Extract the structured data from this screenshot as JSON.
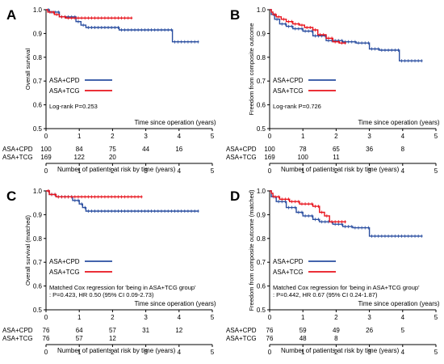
{
  "colors": {
    "cpd": "#2a4ea0",
    "tcg": "#e8121b",
    "axis": "#000000"
  },
  "chart_data": [
    {
      "type": "line",
      "panel_label": "A",
      "ylabel": "Overall survival",
      "xlabel": "Time since operation (years)",
      "ylim": [
        0.5,
        1.0
      ],
      "yticks": [
        "0.5",
        "0.6",
        "0.7",
        "0.8",
        "0.9",
        "1.0"
      ],
      "xlim": [
        0,
        5
      ],
      "xticks": [
        "0",
        "1",
        "2",
        "3",
        "4",
        "5"
      ],
      "grid": false,
      "legend": "middle-left",
      "annotation": [
        "Log-rank P=0.253"
      ],
      "series": [
        {
          "name": "ASA+CPD",
          "color_key": "cpd",
          "steps": [
            [
              0,
              1.0
            ],
            [
              0.1,
              0.99
            ],
            [
              0.4,
              0.97
            ],
            [
              0.9,
              0.95
            ],
            [
              1.05,
              0.935
            ],
            [
              1.2,
              0.925
            ],
            [
              2.2,
              0.915
            ],
            [
              3.8,
              0.865
            ],
            [
              4.6,
              0.865
            ]
          ]
        },
        {
          "name": "ASA+TCG",
          "color_key": "tcg",
          "steps": [
            [
              0,
              1.0
            ],
            [
              0.05,
              0.99
            ],
            [
              0.25,
              0.98
            ],
            [
              0.4,
              0.97
            ],
            [
              0.6,
              0.965
            ],
            [
              2.6,
              0.965
            ]
          ]
        }
      ],
      "risk_table": {
        "title": "Number of patients at risk by time (years)",
        "rows": [
          {
            "name": "ASA+CPD",
            "values": [
              "100",
              "84",
              "75",
              "44",
              "16"
            ]
          },
          {
            "name": "ASA+TCG",
            "values": [
              "169",
              "122",
              "20",
              "",
              ""
            ]
          }
        ],
        "xticks": [
          "0",
          "1",
          "2",
          "3",
          "4",
          "5"
        ]
      }
    },
    {
      "type": "line",
      "panel_label": "B",
      "ylabel": "Freedom from composite outcome",
      "xlabel": "Time since operation (years)",
      "ylim": [
        0.5,
        1.0
      ],
      "yticks": [
        "0.5",
        "0.6",
        "0.7",
        "0.8",
        "0.9",
        "1.0"
      ],
      "xlim": [
        0,
        5
      ],
      "xticks": [
        "0",
        "1",
        "2",
        "3",
        "4",
        "5"
      ],
      "grid": false,
      "legend": "middle-left",
      "annotation": [
        "Log-rank P=0.726"
      ],
      "series": [
        {
          "name": "ASA+CPD",
          "color_key": "cpd",
          "steps": [
            [
              0,
              1.0
            ],
            [
              0.05,
              0.98
            ],
            [
              0.15,
              0.96
            ],
            [
              0.3,
              0.94
            ],
            [
              0.5,
              0.93
            ],
            [
              0.7,
              0.92
            ],
            [
              1.0,
              0.91
            ],
            [
              1.3,
              0.89
            ],
            [
              1.7,
              0.87
            ],
            [
              2.2,
              0.865
            ],
            [
              2.6,
              0.86
            ],
            [
              3.0,
              0.835
            ],
            [
              3.3,
              0.83
            ],
            [
              3.9,
              0.785
            ],
            [
              4.6,
              0.785
            ]
          ]
        },
        {
          "name": "ASA+TCG",
          "color_key": "tcg",
          "steps": [
            [
              0,
              1.0
            ],
            [
              0.05,
              0.99
            ],
            [
              0.1,
              0.98
            ],
            [
              0.2,
              0.97
            ],
            [
              0.35,
              0.96
            ],
            [
              0.5,
              0.95
            ],
            [
              0.7,
              0.94
            ],
            [
              0.9,
              0.935
            ],
            [
              1.05,
              0.925
            ],
            [
              1.3,
              0.915
            ],
            [
              1.45,
              0.895
            ],
            [
              1.7,
              0.88
            ],
            [
              1.9,
              0.865
            ],
            [
              2.1,
              0.86
            ],
            [
              2.3,
              0.86
            ]
          ]
        }
      ],
      "risk_table": {
        "title": "Number of patients at risk by time (years)",
        "rows": [
          {
            "name": "ASA+CPD",
            "values": [
              "100",
              "78",
              "65",
              "36",
              "8"
            ]
          },
          {
            "name": "ASA+TCG",
            "values": [
              "169",
              "100",
              "11",
              "",
              ""
            ]
          }
        ],
        "xticks": [
          "0",
          "1",
          "2",
          "3",
          "4",
          "5"
        ]
      }
    },
    {
      "type": "line",
      "panel_label": "C",
      "ylabel": "Overall survival (matched)",
      "xlabel": "Time since operation (years)",
      "ylim": [
        0.5,
        1.0
      ],
      "yticks": [
        "0.5",
        "0.6",
        "0.7",
        "0.8",
        "0.9",
        "1.0"
      ],
      "xlim": [
        0,
        5
      ],
      "xticks": [
        "0",
        "1",
        "2",
        "3",
        "4",
        "5"
      ],
      "grid": false,
      "legend": "middle-left",
      "annotation": [
        "Matched Cox regression for 'being in ASA+TCG group'",
        ": P=0.423, HR 0.50 (95% CI 0.09-2.73)"
      ],
      "series": [
        {
          "name": "ASA+CPD",
          "color_key": "cpd",
          "steps": [
            [
              0,
              1.0
            ],
            [
              0.1,
              0.985
            ],
            [
              0.3,
              0.975
            ],
            [
              0.8,
              0.96
            ],
            [
              1.0,
              0.945
            ],
            [
              1.1,
              0.93
            ],
            [
              1.2,
              0.915
            ],
            [
              4.6,
              0.915
            ]
          ]
        },
        {
          "name": "ASA+TCG",
          "color_key": "tcg",
          "steps": [
            [
              0,
              1.0
            ],
            [
              0.1,
              0.985
            ],
            [
              0.3,
              0.975
            ],
            [
              2.9,
              0.975
            ]
          ]
        }
      ],
      "risk_table": {
        "title": "Number of patients at risk by time (years)",
        "rows": [
          {
            "name": "ASA+CPD",
            "values": [
              "76",
              "64",
              "57",
              "31",
              "12"
            ]
          },
          {
            "name": "ASA+TCG",
            "values": [
              "76",
              "57",
              "12",
              "",
              ""
            ]
          }
        ],
        "xticks": [
          "0",
          "1",
          "2",
          "3",
          "4",
          "5"
        ]
      }
    },
    {
      "type": "line",
      "panel_label": "D",
      "ylabel": "Freedom from composite outcome (matched)",
      "xlabel": "Time since operation (years)",
      "ylim": [
        0.5,
        1.0
      ],
      "yticks": [
        "0.5",
        "0.6",
        "0.7",
        "0.8",
        "0.9",
        "1.0"
      ],
      "xlim": [
        0,
        5
      ],
      "xticks": [
        "0",
        "1",
        "2",
        "3",
        "4",
        "5"
      ],
      "grid": false,
      "legend": "middle-left",
      "annotation": [
        "Matched Cox regression for 'being in ASA+TCG group'",
        ": P=0.442, HR 0.67 (95% CI 0.24-1.87)"
      ],
      "series": [
        {
          "name": "ASA+CPD",
          "color_key": "cpd",
          "steps": [
            [
              0,
              1.0
            ],
            [
              0.05,
              0.975
            ],
            [
              0.2,
              0.955
            ],
            [
              0.5,
              0.93
            ],
            [
              0.8,
              0.91
            ],
            [
              1.0,
              0.895
            ],
            [
              1.3,
              0.88
            ],
            [
              1.5,
              0.87
            ],
            [
              1.9,
              0.86
            ],
            [
              2.2,
              0.85
            ],
            [
              2.5,
              0.845
            ],
            [
              3.0,
              0.81
            ],
            [
              4.6,
              0.81
            ]
          ]
        },
        {
          "name": "ASA+TCG",
          "color_key": "tcg",
          "steps": [
            [
              0,
              1.0
            ],
            [
              0.05,
              0.99
            ],
            [
              0.1,
              0.975
            ],
            [
              0.3,
              0.965
            ],
            [
              0.6,
              0.955
            ],
            [
              0.9,
              0.945
            ],
            [
              1.3,
              0.935
            ],
            [
              1.5,
              0.91
            ],
            [
              1.65,
              0.895
            ],
            [
              1.8,
              0.87
            ],
            [
              2.3,
              0.87
            ]
          ]
        }
      ],
      "risk_table": {
        "title": "Number of patients at risk by time (years)",
        "rows": [
          {
            "name": "ASA+CPD",
            "values": [
              "76",
              "59",
              "49",
              "26",
              "5"
            ]
          },
          {
            "name": "ASA+TCG",
            "values": [
              "76",
              "48",
              "8",
              "",
              ""
            ]
          }
        ],
        "xticks": [
          "0",
          "1",
          "2",
          "3",
          "4",
          "5"
        ]
      }
    }
  ]
}
